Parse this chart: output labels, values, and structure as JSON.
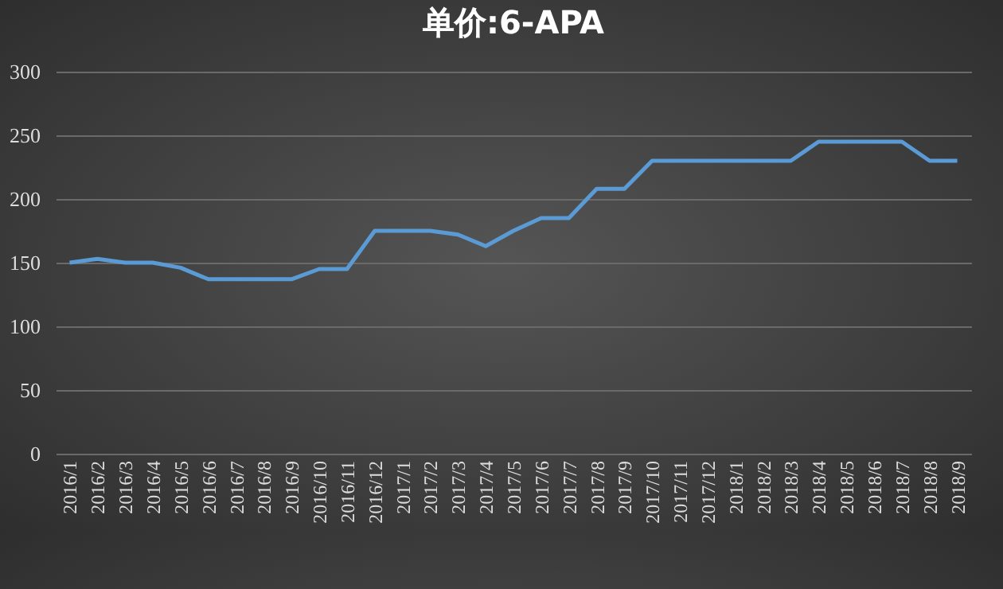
{
  "chart_data": {
    "type": "line",
    "title": "单价:6-APA",
    "categories": [
      "2016/1",
      "2016/2",
      "2016/3",
      "2016/4",
      "2016/5",
      "2016/6",
      "2016/7",
      "2016/8",
      "2016/9",
      "2016/10",
      "2016/11",
      "2016/12",
      "2017/1",
      "2017/2",
      "2017/3",
      "2017/4",
      "2017/5",
      "2017/6",
      "2017/7",
      "2017/8",
      "2017/9",
      "2017/10",
      "2017/11",
      "2017/12",
      "2018/1",
      "2018/2",
      "2018/3",
      "2018/4",
      "2018/5",
      "2018/6",
      "2018/7",
      "2018/8",
      "2018/9"
    ],
    "series": [
      {
        "color": "#5b9bd5",
        "values": [
          150,
          153,
          150,
          150,
          146,
          137,
          137,
          137,
          137,
          145,
          145,
          175,
          175,
          175,
          172,
          163,
          175,
          185,
          185,
          208,
          208,
          230,
          230,
          230,
          230,
          230,
          230,
          245,
          245,
          245,
          245,
          230,
          230
        ]
      }
    ],
    "ylim": [
      0,
      300
    ],
    "yticks": [
      0,
      50,
      100,
      150,
      200,
      250,
      300
    ],
    "grid": "y",
    "legend": false,
    "marker": "none"
  }
}
